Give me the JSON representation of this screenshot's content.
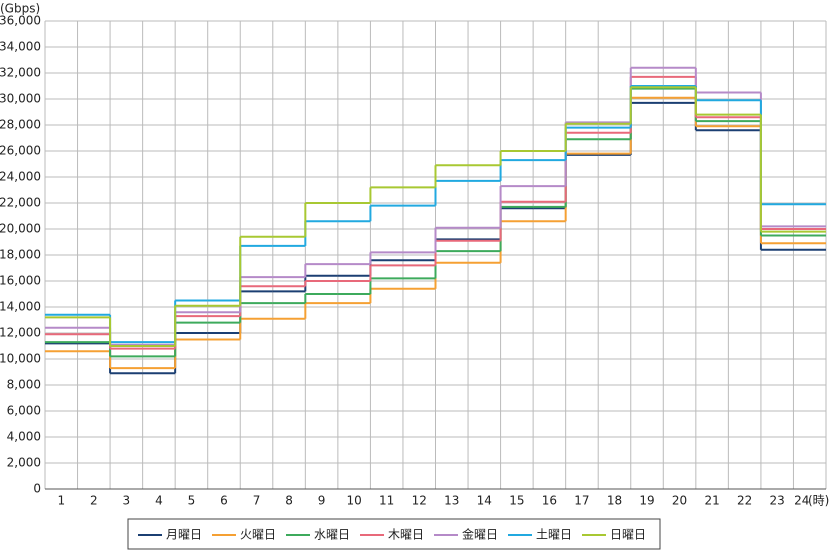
{
  "chart_data": {
    "type": "step",
    "y_unit": "(Gbps)",
    "x_unit": "(時)",
    "categories": [
      "1",
      "2",
      "3",
      "4",
      "5",
      "6",
      "7",
      "8",
      "9",
      "10",
      "11",
      "12",
      "13",
      "14",
      "15",
      "16",
      "17",
      "18",
      "19",
      "20",
      "21",
      "22",
      "23",
      "24"
    ],
    "ylim": [
      0,
      36000
    ],
    "yticks": [
      0,
      {
        "value": 2000,
        "label": "2,000"
      },
      {
        "value": 4000,
        "label": "4,000"
      },
      {
        "value": 6000,
        "label": "6,000"
      },
      {
        "value": 8000,
        "label": "8,000"
      },
      {
        "value": 10000,
        "label": "10,000"
      },
      {
        "value": 12000,
        "label": "12,000"
      },
      {
        "value": 14000,
        "label": "14,000"
      },
      {
        "value": 16000,
        "label": "16,000"
      },
      {
        "value": 18000,
        "label": "18,000"
      },
      {
        "value": 20000,
        "label": "20,000"
      },
      {
        "value": 22000,
        "label": "22,000"
      },
      {
        "value": 24000,
        "label": "24,000"
      },
      {
        "value": 26000,
        "label": "26,000"
      },
      {
        "value": 28000,
        "label": "28,000"
      },
      {
        "value": 30000,
        "label": "30,000"
      },
      {
        "value": 32000,
        "label": "32,000"
      },
      {
        "value": 34000,
        "label": "34,000"
      },
      {
        "value": 36000,
        "label": "36,000"
      }
    ],
    "grid": true,
    "legend": "bottom",
    "series": [
      {
        "name": "月曜日",
        "color": "#1b3f72",
        "values": [
          11200,
          11200,
          8900,
          8900,
          12000,
          12000,
          15200,
          15200,
          16400,
          16400,
          17600,
          17600,
          19200,
          19200,
          21600,
          21600,
          25700,
          25700,
          29700,
          29700,
          27600,
          27600,
          18400,
          18400
        ]
      },
      {
        "name": "火曜日",
        "color": "#f5a033",
        "values": [
          10600,
          10600,
          9300,
          9300,
          11500,
          11500,
          13100,
          13100,
          14300,
          14300,
          15400,
          15400,
          17400,
          17400,
          20600,
          20600,
          25800,
          25800,
          30100,
          30100,
          27900,
          27900,
          18900,
          18900
        ]
      },
      {
        "name": "水曜日",
        "color": "#3daa5c",
        "values": [
          11300,
          11300,
          10200,
          10200,
          12800,
          12800,
          14300,
          14300,
          15000,
          15000,
          16200,
          16200,
          18300,
          18300,
          21700,
          21700,
          26900,
          26900,
          30800,
          30800,
          28300,
          28300,
          19500,
          19500
        ]
      },
      {
        "name": "木曜日",
        "color": "#e8697a",
        "values": [
          11900,
          11900,
          10800,
          10800,
          13300,
          13300,
          15600,
          15600,
          16000,
          16000,
          17200,
          17200,
          19100,
          19100,
          22100,
          22100,
          27400,
          27400,
          31700,
          31700,
          28600,
          28600,
          20000,
          20000
        ]
      },
      {
        "name": "金曜日",
        "color": "#b58ac8",
        "values": [
          12400,
          12400,
          11100,
          11100,
          13600,
          13600,
          16300,
          16300,
          17300,
          17300,
          18200,
          18200,
          20100,
          20100,
          23300,
          23300,
          28200,
          28200,
          32400,
          32400,
          30500,
          30500,
          20200,
          20200
        ]
      },
      {
        "name": "土曜日",
        "color": "#21a9e0",
        "values": [
          13400,
          13400,
          11300,
          11300,
          14500,
          14500,
          18700,
          18700,
          20600,
          20600,
          21800,
          21800,
          23700,
          23700,
          25300,
          25300,
          27800,
          27800,
          31000,
          31000,
          29900,
          29900,
          21900,
          21900
        ]
      },
      {
        "name": "日曜日",
        "color": "#a8c832",
        "values": [
          13200,
          13200,
          11000,
          11000,
          14100,
          14100,
          19400,
          19400,
          22000,
          22000,
          23200,
          23200,
          24900,
          24900,
          26000,
          26000,
          28100,
          28100,
          30900,
          30900,
          28800,
          28800,
          19800,
          19800
        ]
      }
    ]
  }
}
